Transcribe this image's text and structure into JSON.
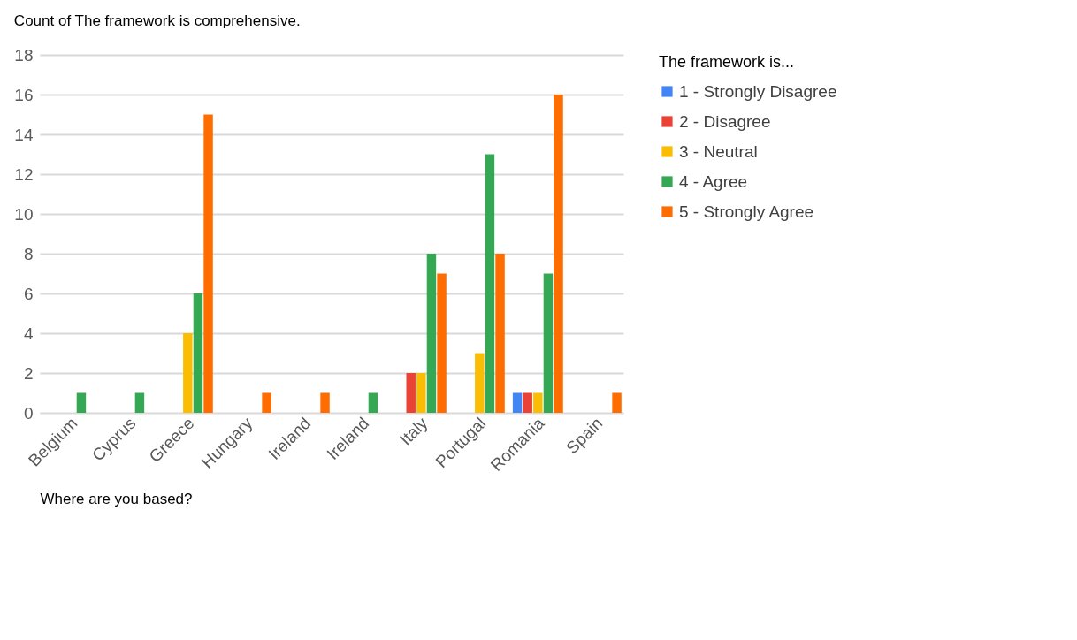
{
  "chart_data": {
    "type": "bar",
    "title": "Count of The framework is comprehensive.",
    "xlabel": "Where are you based?",
    "legend_title": "The framework is...",
    "categories": [
      "Belgium",
      "Cyprus",
      "Greece",
      "Hungary",
      "Ireland",
      "Ireland",
      "Italy",
      "Portugal",
      "Romania",
      "Spain"
    ],
    "series": [
      {
        "name": "1 - Strongly Disagree",
        "color": "#4285f4",
        "values": [
          null,
          null,
          null,
          null,
          null,
          null,
          null,
          null,
          1,
          null
        ]
      },
      {
        "name": "2 - Disagree",
        "color": "#ea4335",
        "values": [
          null,
          null,
          null,
          null,
          null,
          null,
          2,
          null,
          1,
          null
        ]
      },
      {
        "name": "3 - Neutral",
        "color": "#fbbc04",
        "values": [
          null,
          null,
          4,
          null,
          null,
          null,
          2,
          3,
          1,
          null
        ]
      },
      {
        "name": "4 - Agree",
        "color": "#34a853",
        "values": [
          1,
          1,
          6,
          null,
          null,
          1,
          8,
          13,
          7,
          null
        ]
      },
      {
        "name": "5 - Strongly Agree",
        "color": "#ff6d01",
        "values": [
          null,
          null,
          15,
          1,
          1,
          null,
          7,
          8,
          16,
          1
        ]
      }
    ],
    "ylim": [
      0,
      18
    ],
    "yticks": [
      0,
      2,
      4,
      6,
      8,
      10,
      12,
      14,
      16,
      18
    ],
    "grid": "y",
    "legend": "right"
  }
}
